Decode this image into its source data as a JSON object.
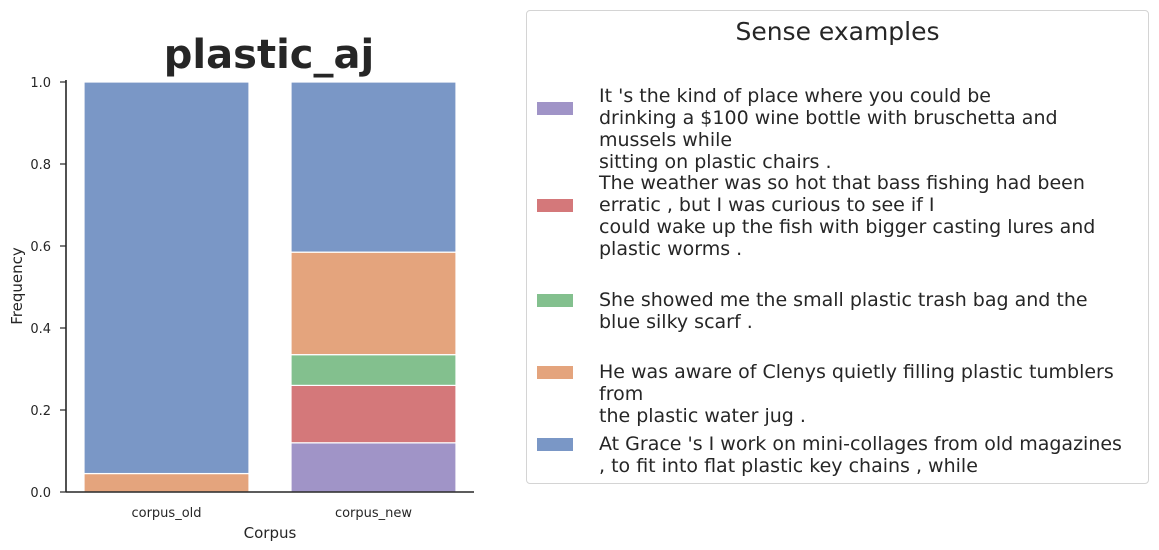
{
  "chart_data": {
    "type": "bar",
    "stacked": true,
    "title": "plastic_aj",
    "xlabel": "Corpus",
    "ylabel": "Frequency",
    "categories": [
      "corpus_old",
      "corpus_new"
    ],
    "ylim": [
      0,
      1.0
    ],
    "yticks": [
      "0.0",
      "0.2",
      "0.4",
      "0.6",
      "0.8",
      "1.0"
    ],
    "grid": false,
    "legend_placement": "right",
    "series": [
      {
        "color": "#a094c7",
        "values": [
          0.0,
          0.12
        ]
      },
      {
        "color": "#d4787a",
        "values": [
          0.0,
          0.14
        ]
      },
      {
        "color": "#83c08e",
        "values": [
          0.0,
          0.075
        ]
      },
      {
        "color": "#e4a47d",
        "values": [
          0.045,
          0.25
        ]
      },
      {
        "color": "#7a97c6",
        "values": [
          0.955,
          0.415
        ]
      }
    ]
  },
  "legend": {
    "title": "Sense examples",
    "entries": [
      {
        "color": "#a094c7",
        "text": "It 's the kind of place where you could be\ndrinking a $100 wine bottle with bruschetta and mussels while\nsitting on plastic chairs ."
      },
      {
        "color": "#d4787a",
        "text": "The weather was so hot that bass fishing had been\nerratic , but I was curious to see if I\ncould wake up the fish with bigger casting lures and\nplastic worms ."
      },
      {
        "color": "#83c08e",
        "text": "She showed me the small plastic trash bag and the\nblue silky scarf ."
      },
      {
        "color": "#e4a47d",
        "text": "He was aware of Clenys quietly filling plastic tumblers from\nthe plastic water jug ."
      },
      {
        "color": "#7a97c6",
        "text": "At Grace 's I work on mini-collages from old magazines\n, to fit into flat plastic key chains , while"
      }
    ]
  }
}
